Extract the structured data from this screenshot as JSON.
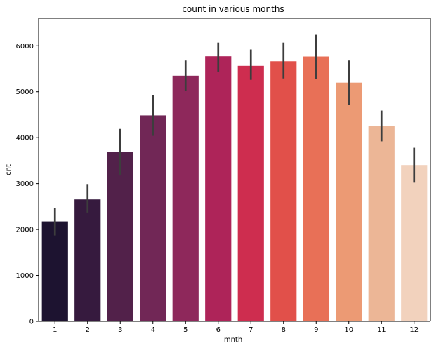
{
  "chart_data": {
    "type": "bar",
    "title": "count in various months",
    "xlabel": "mnth",
    "ylabel": "cnt",
    "categories": [
      "1",
      "2",
      "3",
      "4",
      "5",
      "6",
      "7",
      "8",
      "9",
      "10",
      "11",
      "12"
    ],
    "values": [
      2176,
      2655,
      3692,
      4485,
      5350,
      5772,
      5564,
      5664,
      5767,
      5199,
      4247,
      3404
    ],
    "error_bars": [
      [
        1870,
        2470
      ],
      [
        2370,
        2990
      ],
      [
        3180,
        4190
      ],
      [
        4040,
        4920
      ],
      [
        5020,
        5680
      ],
      [
        5440,
        6070
      ],
      [
        5260,
        5920
      ],
      [
        5290,
        6070
      ],
      [
        5280,
        6240
      ],
      [
        4710,
        5680
      ],
      [
        3920,
        4590
      ],
      [
        3020,
        3780
      ]
    ],
    "colors": [
      "#1d1330",
      "#361a3e",
      "#52214a",
      "#712756",
      "#8e285b",
      "#ae2459",
      "#ce2d4f",
      "#e1504a",
      "#e87057",
      "#ec9a74",
      "#ecb696",
      "#f2d2bd"
    ],
    "error_bar_color": "#3d3d3d",
    "ylim": [
      0,
      6600
    ],
    "yticks": [
      0,
      1000,
      2000,
      3000,
      4000,
      5000,
      6000
    ],
    "grid": false,
    "legend": "none"
  }
}
